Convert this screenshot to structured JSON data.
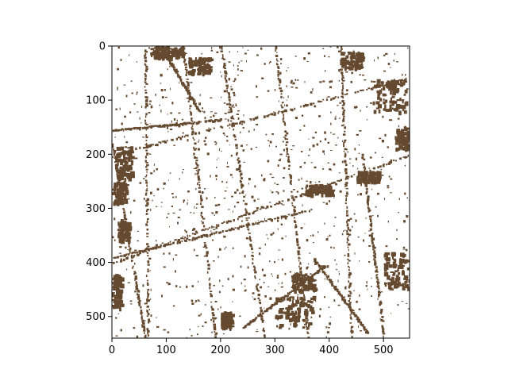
{
  "chart_data": {
    "type": "heatmap",
    "title": "",
    "xlabel": "",
    "ylabel": "",
    "xlim": [
      0,
      548
    ],
    "ylim": [
      540,
      0
    ],
    "xticks": [
      0,
      100,
      200,
      300,
      400,
      500
    ],
    "yticks": [
      0,
      100,
      200,
      300,
      400,
      500
    ],
    "grid": false,
    "legend": "none",
    "colors": {
      "foreground": "#654a30",
      "background": "#ffffff",
      "axis": "#000000"
    },
    "content": "binary mask map: brown pixels on white background"
  }
}
